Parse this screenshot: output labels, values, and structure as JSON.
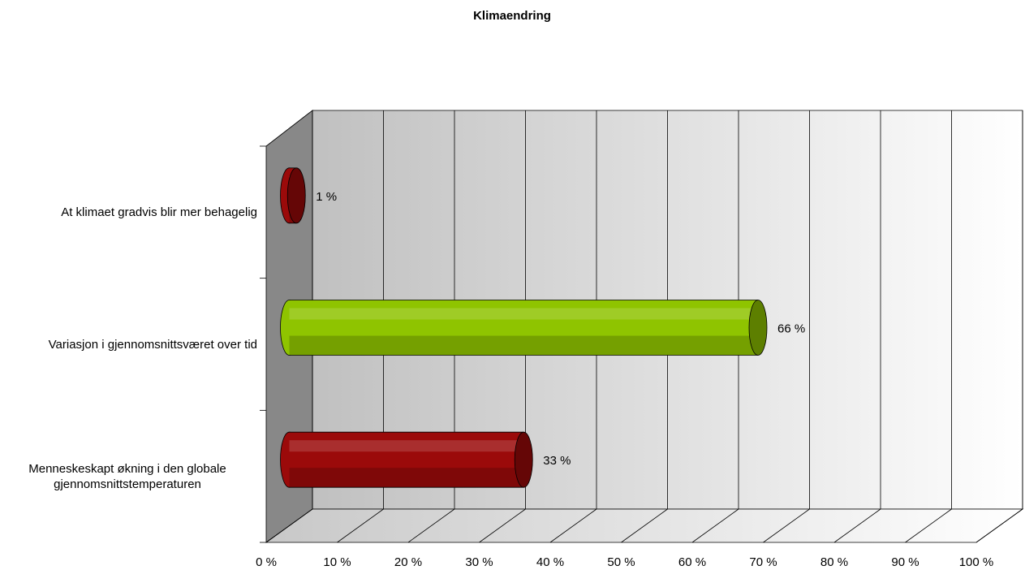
{
  "chart_data": {
    "type": "bar",
    "orientation": "horizontal",
    "title": "Klimaendring",
    "categories": [
      "At klimaet gradvis blir mer behagelig",
      "Variasjon i gjennomsnittsværet over tid",
      "Menneskeskapt økning i den globale gjennomsnittstemperaturen"
    ],
    "values": [
      1,
      66,
      33
    ],
    "value_labels": [
      "1 %",
      "66 %",
      "33 %"
    ],
    "colors": [
      "#9b0a0a",
      "#8fc400",
      "#9b0a0a"
    ],
    "xlim": [
      0,
      100
    ],
    "xticks": [
      {
        "value": 0,
        "label": "0 %"
      },
      {
        "value": 10,
        "label": "10 %"
      },
      {
        "value": 20,
        "label": "20 %"
      },
      {
        "value": 30,
        "label": "30 %"
      },
      {
        "value": 40,
        "label": "40 %"
      },
      {
        "value": 50,
        "label": "50 %"
      },
      {
        "value": 60,
        "label": "60 %"
      },
      {
        "value": 70,
        "label": "70 %"
      },
      {
        "value": 80,
        "label": "80 %"
      },
      {
        "value": 90,
        "label": "90 %"
      },
      {
        "value": 100,
        "label": "100 %"
      }
    ],
    "grid": true
  }
}
